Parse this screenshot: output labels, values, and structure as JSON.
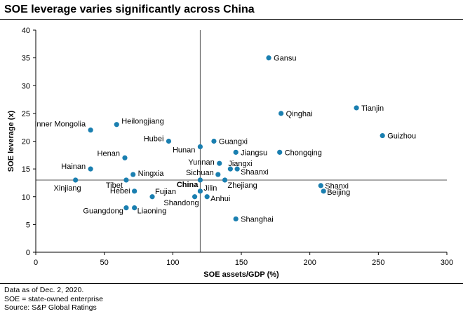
{
  "title": "SOE leverage varies significantly across China",
  "footnotes": [
    "Data as of Dec. 2, 2020.",
    "SOE = state-owned enterprise",
    "Source: S&P Global Ratings"
  ],
  "chart_data": {
    "type": "scatter",
    "xlabel": "SOE assets/GDP (%)",
    "ylabel": "SOE leverage (x)",
    "xlim": [
      0,
      300
    ],
    "ylim": [
      0,
      40
    ],
    "xticks": [
      "0",
      "50",
      "100",
      "150",
      "200",
      "250",
      "300"
    ],
    "yticks": [
      "0",
      "5",
      "10",
      "15",
      "20",
      "25",
      "30",
      "35",
      "40"
    ],
    "grid": false,
    "reference_lines": {
      "x": 120,
      "y": 13
    },
    "marker_color": "#1a7fb0",
    "points": [
      {
        "label": "Gansu",
        "x": 170,
        "y": 35
      },
      {
        "label": "Tianjin",
        "x": 234,
        "y": 26
      },
      {
        "label": "Qinghai",
        "x": 179,
        "y": 25
      },
      {
        "label": "Guizhou",
        "x": 253,
        "y": 21
      },
      {
        "label": "Inner Mongolia",
        "x": 40,
        "y": 22
      },
      {
        "label": "Heilongjiang",
        "x": 59,
        "y": 23
      },
      {
        "label": "Hubei",
        "x": 97,
        "y": 20
      },
      {
        "label": "Guangxi",
        "x": 130,
        "y": 20
      },
      {
        "label": "Hunan",
        "x": 120,
        "y": 19
      },
      {
        "label": "Jiangsu",
        "x": 146,
        "y": 18
      },
      {
        "label": "Chongqing",
        "x": 178,
        "y": 18
      },
      {
        "label": "Henan",
        "x": 65,
        "y": 17
      },
      {
        "label": "Yunnan",
        "x": 134,
        "y": 16
      },
      {
        "label": "Jiangxi",
        "x": 142,
        "y": 15
      },
      {
        "label": "Hainan",
        "x": 40,
        "y": 15
      },
      {
        "label": "Shaanxi",
        "x": 147,
        "y": 15
      },
      {
        "label": "Sichuan",
        "x": 133,
        "y": 14
      },
      {
        "label": "Ningxia",
        "x": 71,
        "y": 14
      },
      {
        "label": "Xinjiang",
        "x": 29,
        "y": 13
      },
      {
        "label": "Tibet",
        "x": 66,
        "y": 13
      },
      {
        "label": "China",
        "x": 120,
        "y": 13,
        "bold": true
      },
      {
        "label": "Zhejiang",
        "x": 138,
        "y": 13
      },
      {
        "label": "Shanxi",
        "x": 208,
        "y": 12
      },
      {
        "label": "Beijing",
        "x": 210,
        "y": 11
      },
      {
        "label": "Hebei",
        "x": 72,
        "y": 11
      },
      {
        "label": "Jilin",
        "x": 120,
        "y": 11
      },
      {
        "label": "Fujian",
        "x": 85,
        "y": 10
      },
      {
        "label": "Shandong",
        "x": 116,
        "y": 10
      },
      {
        "label": "Anhui",
        "x": 125,
        "y": 10
      },
      {
        "label": "Guangdong",
        "x": 66,
        "y": 8
      },
      {
        "label": "Liaoning",
        "x": 72,
        "y": 8
      },
      {
        "label": "Shanghai",
        "x": 146,
        "y": 6
      }
    ]
  }
}
